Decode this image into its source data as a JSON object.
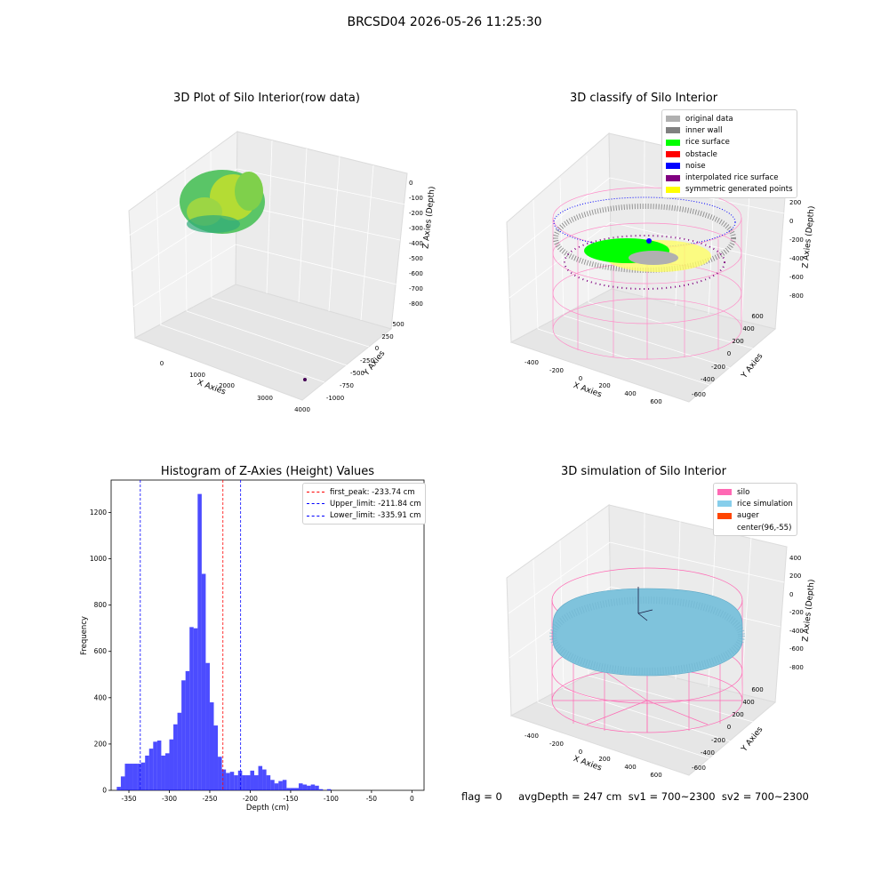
{
  "figure": {
    "suptitle": "BRCSD04 2026-05-26 11:25:30",
    "footer": "flag = 0     avgDepth = 247 cm  sv1 = 700~2300  sv2 = 700~2300"
  },
  "panels": {
    "raw": {
      "title": "3D Plot of Silo Interior(row data)",
      "xlabel": "X Axies",
      "ylabel": "Y Axies",
      "zlabel": "Z Axies (Depth)",
      "xticks": [
        "0",
        "1000",
        "2000",
        "3000",
        "4000"
      ],
      "yticks": [
        "500",
        "250",
        "0",
        "-250",
        "-500",
        "-750",
        "-1000"
      ],
      "zticks": [
        "0",
        "-100",
        "-200",
        "-300",
        "-400",
        "-500",
        "-600",
        "-700",
        "-800"
      ]
    },
    "classify": {
      "title": "3D classify of Silo Interior",
      "xlabel": "X Axies",
      "ylabel": "Y Axies",
      "zlabel": "Z Axies (Depth)",
      "xticks": [
        "-400",
        "-200",
        "0",
        "200",
        "400",
        "600"
      ],
      "yticks": [
        "600",
        "400",
        "200",
        "0",
        "-200",
        "-400",
        "-600"
      ],
      "zticks": [
        "200",
        "0",
        "-200",
        "-400",
        "-600",
        "-800"
      ],
      "legend": [
        {
          "label": "original data",
          "color": "#b0b0b0"
        },
        {
          "label": "inner wall",
          "color": "#808080"
        },
        {
          "label": "rice surface",
          "color": "#00ff00"
        },
        {
          "label": "obstacle",
          "color": "#ff0000"
        },
        {
          "label": "noise",
          "color": "#0000ff"
        },
        {
          "label": "interpolated rice surface",
          "color": "#800080"
        },
        {
          "label": "symmetric generated points",
          "color": "#ffff00"
        }
      ]
    },
    "simulation": {
      "title": "3D simulation of Silo Interior",
      "xlabel": "X Axies",
      "ylabel": "Y Axies",
      "zlabel": "Z Axies (Depth)",
      "xticks": [
        "-400",
        "-200",
        "0",
        "200",
        "400",
        "600"
      ],
      "yticks": [
        "600",
        "400",
        "200",
        "0",
        "-200",
        "-400",
        "-600"
      ],
      "zticks": [
        "400",
        "200",
        "0",
        "-200",
        "-400",
        "-600",
        "-800"
      ],
      "legend": [
        {
          "label": "silo",
          "color": "#ff69b4"
        },
        {
          "label": "rice simulation",
          "color": "#87ceeb"
        },
        {
          "label": "auger",
          "color": "#ff4500"
        },
        {
          "label": "center(96,-55)",
          "color": ""
        }
      ]
    }
  },
  "chart_data": [
    {
      "type": "bar",
      "title": "Histogram of Z-Axies (Height) Values",
      "xlabel": "Depth (cm)",
      "ylabel": "Frequency",
      "bar_color": "#0000ff",
      "bin_width": 5,
      "xlim": [
        -372,
        15
      ],
      "ylim": [
        0,
        1340
      ],
      "xticks": [
        -350,
        -300,
        -250,
        -200,
        -150,
        -100,
        -50,
        0
      ],
      "yticks": [
        0,
        200,
        400,
        600,
        800,
        1000,
        1200
      ],
      "bins": [
        [
          -365,
          15
        ],
        [
          -360,
          60
        ],
        [
          -355,
          115
        ],
        [
          -350,
          115
        ],
        [
          -345,
          115
        ],
        [
          -340,
          115
        ],
        [
          -335,
          120
        ],
        [
          -330,
          150
        ],
        [
          -325,
          180
        ],
        [
          -320,
          210
        ],
        [
          -315,
          215
        ],
        [
          -310,
          150
        ],
        [
          -305,
          160
        ],
        [
          -300,
          220
        ],
        [
          -295,
          285
        ],
        [
          -290,
          335
        ],
        [
          -285,
          475
        ],
        [
          -280,
          515
        ],
        [
          -275,
          705
        ],
        [
          -270,
          700
        ],
        [
          -265,
          1280
        ],
        [
          -260,
          935
        ],
        [
          -255,
          550
        ],
        [
          -250,
          380
        ],
        [
          -245,
          280
        ],
        [
          -240,
          145
        ],
        [
          -235,
          90
        ],
        [
          -230,
          75
        ],
        [
          -225,
          80
        ],
        [
          -220,
          65
        ],
        [
          -215,
          85
        ],
        [
          -210,
          65
        ],
        [
          -205,
          65
        ],
        [
          -200,
          85
        ],
        [
          -195,
          65
        ],
        [
          -190,
          105
        ],
        [
          -185,
          90
        ],
        [
          -180,
          65
        ],
        [
          -175,
          45
        ],
        [
          -170,
          30
        ],
        [
          -165,
          40
        ],
        [
          -160,
          45
        ],
        [
          -155,
          10
        ],
        [
          -150,
          10
        ],
        [
          -145,
          10
        ],
        [
          -140,
          30
        ],
        [
          -135,
          25
        ],
        [
          -130,
          20
        ],
        [
          -125,
          25
        ],
        [
          -120,
          20
        ],
        [
          -115,
          5
        ],
        [
          -110,
          0
        ],
        [
          -105,
          5
        ]
      ],
      "lines": [
        {
          "name": "first_peak: -233.74 cm",
          "x": -233.74,
          "color": "#ff0000"
        },
        {
          "name": "Upper_limit: -211.84 cm",
          "x": -211.84,
          "color": "#0000ff"
        },
        {
          "name": "Lower_limit: -335.91 cm",
          "x": -335.91,
          "color": "#0000ff"
        }
      ]
    }
  ]
}
